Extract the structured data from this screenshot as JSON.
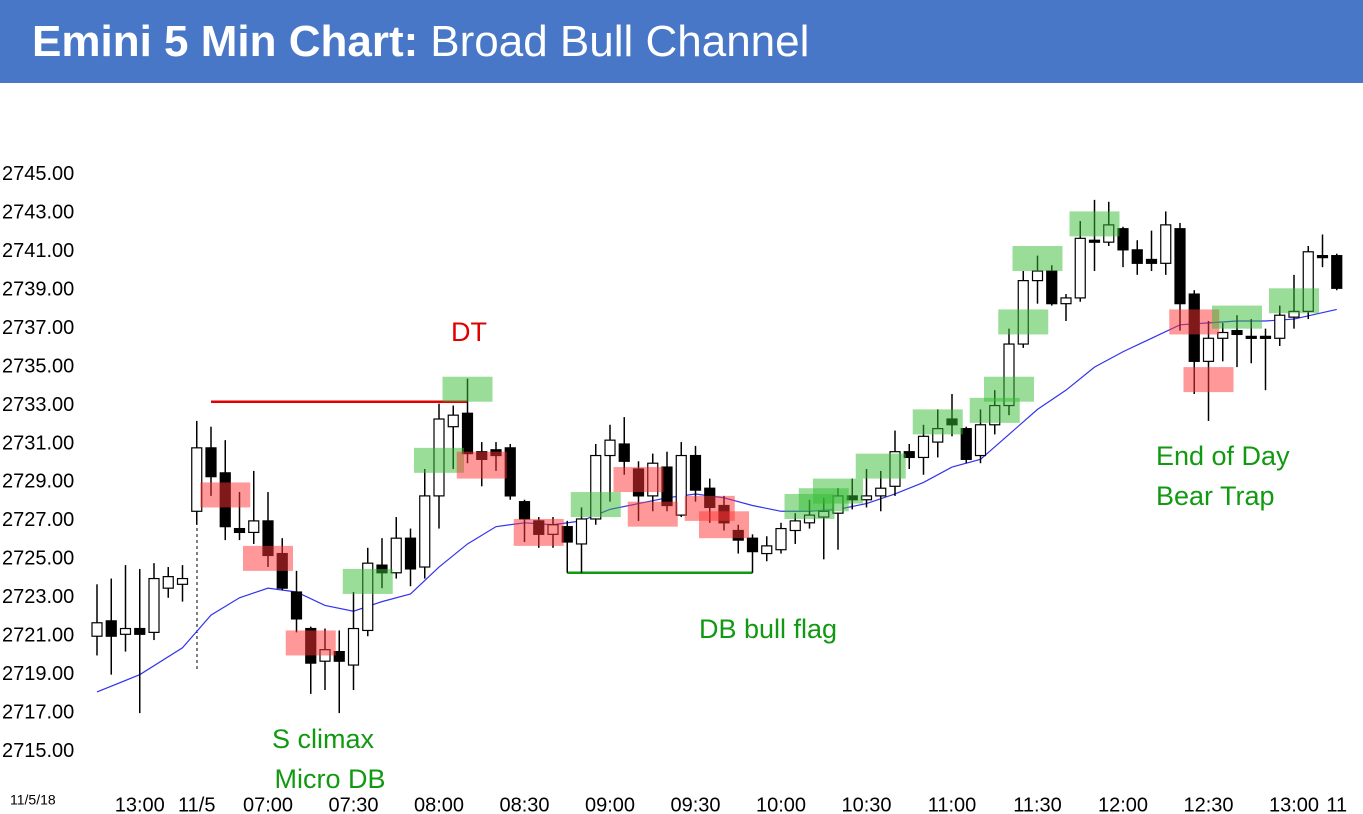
{
  "chart_data": {
    "type": "candlestick",
    "title_bold": "Emini 5 Min Chart:",
    "title_rest": "Broad Bull Channel",
    "date_label": "11/5/18",
    "categories": [
      null,
      null,
      null,
      "13:00",
      null,
      null,
      null,
      "11/5",
      null,
      null,
      null,
      null,
      "07:00",
      null,
      null,
      null,
      null,
      null,
      "07:30",
      null,
      null,
      null,
      null,
      null,
      "08:00",
      null,
      null,
      null,
      null,
      null,
      "08:30",
      null,
      null,
      null,
      null,
      null,
      "09:00",
      null,
      null,
      null,
      null,
      null,
      "09:30",
      null,
      null,
      null,
      null,
      null,
      "10:00",
      null,
      null,
      null,
      null,
      null,
      "10:30",
      null,
      null,
      null,
      null,
      null,
      "11:00",
      null,
      null,
      null,
      null,
      null,
      "11:30",
      null,
      null,
      null,
      null,
      null,
      "12:00",
      null,
      null,
      null,
      null,
      null,
      "12:30",
      null,
      null,
      null,
      null,
      null,
      "13:00",
      null,
      null,
      "11"
    ],
    "open": [
      2721.0,
      2721.8,
      2721.1,
      2721.4,
      2721.2,
      2723.5,
      2723.7,
      2727.5,
      2730.8,
      2729.5,
      2726.6,
      2726.4,
      2727.0,
      2725.3,
      2723.3,
      2721.4,
      2719.7,
      2720.2,
      2719.5,
      2721.3,
      2724.7,
      2724.3,
      2726.1,
      2724.6,
      2728.3,
      2731.9,
      2732.6,
      2730.6,
      2730.7,
      2730.8,
      2728.0,
      2727.0,
      2726.3,
      2726.7,
      2725.8,
      2727.1,
      2730.4,
      2731.0,
      2729.7,
      2728.3,
      2729.8,
      2727.3,
      2730.4,
      2728.7,
      2727.8,
      2726.5,
      2726.1,
      2725.3,
      2725.5,
      2726.5,
      2726.9,
      2727.2,
      2727.4,
      2728.3,
      2728.1,
      2728.3,
      2728.8,
      2730.6,
      2730.3,
      2731.1,
      2732.3,
      2731.8,
      2730.4,
      2732.0,
      2733.0,
      2736.2,
      2739.5,
      2740.0,
      2738.3,
      2738.6,
      2741.6,
      2741.5,
      2742.2,
      2741.1,
      2740.6,
      2740.4,
      2742.2,
      2738.8,
      2735.3,
      2736.5,
      2736.9,
      2736.6,
      2736.6,
      2736.5,
      2737.6,
      2737.9,
      2740.8,
      2740.8
    ],
    "high": [
      2723.7,
      2724.0,
      2724.7,
      2724.5,
      2724.8,
      2724.6,
      2724.7,
      2732.2,
      2731.9,
      2731.2,
      2728.5,
      2729.6,
      2728.5,
      2726.1,
      2724.4,
      2721.5,
      2721.4,
      2721.3,
      2723.3,
      2725.6,
      2726.1,
      2727.2,
      2726.6,
      2729.7,
      2733.1,
      2733.0,
      2734.4,
      2731.1,
      2731.1,
      2731.0,
      2728.1,
      2727.2,
      2727.2,
      2727.0,
      2727.7,
      2731.0,
      2732.0,
      2732.4,
      2730.1,
      2730.5,
      2730.6,
      2731.1,
      2730.9,
      2729.2,
      2728.3,
      2726.8,
      2726.3,
      2726.2,
      2726.9,
      2727.4,
      2728.1,
      2728.2,
      2728.7,
      2729.2,
      2729.7,
      2729.6,
      2731.7,
      2731.0,
      2732.0,
      2732.8,
      2733.6,
      2731.9,
      2732.8,
      2733.8,
      2737.0,
      2740.0,
      2740.8,
      2740.3,
      2738.8,
      2742.6,
      2743.7,
      2743.6,
      2742.3,
      2741.6,
      2742.1,
      2743.1,
      2742.5,
      2739.0,
      2737.4,
      2737.3,
      2737.7,
      2737.5,
      2737.0,
      2738.2,
      2739.8,
      2741.3,
      2741.9,
      2740.9
    ],
    "low": [
      2720.0,
      2719.0,
      2720.2,
      2717.0,
      2720.8,
      2723.0,
      2722.8,
      2726.8,
      2728.3,
      2726.0,
      2726.0,
      2725.8,
      2724.6,
      2723.4,
      2721.2,
      2718.0,
      2718.2,
      2717.0,
      2718.2,
      2721.0,
      2723.5,
      2724.0,
      2723.6,
      2724.0,
      2726.6,
      2729.7,
      2730.0,
      2728.8,
      2729.6,
      2728.1,
      2725.9,
      2725.6,
      2725.6,
      2724.3,
      2724.3,
      2726.8,
      2728.0,
      2729.4,
      2727.0,
      2727.5,
      2727.5,
      2727.2,
      2728.0,
      2726.9,
      2726.5,
      2725.3,
      2724.3,
      2724.9,
      2725.3,
      2725.8,
      2726.6,
      2725.0,
      2725.5,
      2727.6,
      2727.7,
      2727.5,
      2728.3,
      2729.7,
      2729.4,
      2730.3,
      2731.4,
      2730.0,
      2730.0,
      2731.5,
      2732.5,
      2736.0,
      2738.3,
      2738.2,
      2737.4,
      2738.4,
      2740.0,
      2741.3,
      2740.2,
      2739.8,
      2740.0,
      2739.8,
      2736.9,
      2733.6,
      2732.2,
      2735.3,
      2735.0,
      2735.2,
      2733.8,
      2736.1,
      2737.0,
      2737.5,
      2740.2,
      2739.0
    ],
    "close": [
      2721.7,
      2721.0,
      2721.4,
      2721.1,
      2724.0,
      2724.1,
      2724.0,
      2730.8,
      2729.3,
      2726.7,
      2726.4,
      2727.0,
      2725.2,
      2723.5,
      2721.9,
      2719.6,
      2720.3,
      2719.7,
      2721.4,
      2724.8,
      2724.3,
      2726.1,
      2724.5,
      2728.3,
      2732.3,
      2732.5,
      2730.5,
      2730.2,
      2730.4,
      2728.3,
      2727.1,
      2726.3,
      2726.8,
      2725.9,
      2727.1,
      2730.4,
      2731.2,
      2730.1,
      2728.3,
      2730.0,
      2727.8,
      2730.4,
      2728.6,
      2727.7,
      2726.9,
      2726.0,
      2725.4,
      2725.7,
      2726.6,
      2727.0,
      2727.3,
      2727.5,
      2728.3,
      2728.1,
      2728.3,
      2728.7,
      2730.6,
      2730.3,
      2731.4,
      2731.8,
      2732.0,
      2730.2,
      2732.0,
      2733.0,
      2736.2,
      2739.5,
      2740.0,
      2738.3,
      2738.6,
      2741.7,
      2741.5,
      2742.4,
      2741.1,
      2740.4,
      2740.4,
      2742.4,
      2738.3,
      2735.3,
      2736.5,
      2736.8,
      2736.7,
      2736.5,
      2736.5,
      2737.7,
      2737.9,
      2741.0,
      2740.7,
      2739.1
    ],
    "ema": {
      "color": "#3333ee",
      "x": [
        0,
        3,
        6,
        8,
        10,
        12,
        14,
        16,
        18,
        20,
        22,
        24,
        26,
        28,
        30,
        32,
        34,
        36,
        38,
        40,
        42,
        44,
        46,
        48,
        50,
        52,
        54,
        56,
        58,
        60,
        62,
        64,
        66,
        68,
        70,
        72,
        74,
        76,
        78,
        80,
        82,
        84,
        87
      ],
      "values": [
        2718.1,
        2719.0,
        2720.4,
        2722.1,
        2723.0,
        2723.5,
        2723.3,
        2722.6,
        2722.3,
        2722.8,
        2723.2,
        2724.6,
        2725.8,
        2726.7,
        2726.9,
        2726.8,
        2727.0,
        2727.6,
        2727.9,
        2728.2,
        2728.4,
        2728.2,
        2727.8,
        2727.5,
        2727.5,
        2727.6,
        2727.9,
        2728.4,
        2729.0,
        2729.8,
        2730.2,
        2731.5,
        2732.8,
        2733.8,
        2735.0,
        2735.8,
        2736.5,
        2737.2,
        2737.3,
        2737.4,
        2737.4,
        2737.5,
        2738.0
      ]
    },
    "highlights": [
      {
        "color": "#ff3333",
        "bar": 9,
        "range": [
          2727.7,
          2729.0
        ]
      },
      {
        "color": "#ff3333",
        "bar": 12,
        "range": [
          2724.4,
          2725.7
        ]
      },
      {
        "color": "#ff3333",
        "bar": 15,
        "range": [
          2720.0,
          2721.3
        ]
      },
      {
        "color": "#33bb33",
        "bar": 19,
        "range": [
          2723.2,
          2724.5
        ]
      },
      {
        "color": "#33bb33",
        "bar": 24,
        "range": [
          2729.5,
          2730.8
        ]
      },
      {
        "color": "#33bb33",
        "bar": 26,
        "range": [
          2733.2,
          2734.5
        ]
      },
      {
        "color": "#ff3333",
        "bar": 27,
        "range": [
          2729.2,
          2730.6
        ]
      },
      {
        "color": "#ff3333",
        "bar": 31,
        "range": [
          2725.7,
          2727.1
        ]
      },
      {
        "color": "#33bb33",
        "bar": 35,
        "range": [
          2727.2,
          2728.5
        ]
      },
      {
        "color": "#ff3333",
        "bar": 38,
        "range": [
          2728.5,
          2729.8
        ]
      },
      {
        "color": "#ff3333",
        "bar": 39,
        "range": [
          2726.7,
          2728.0
        ]
      },
      {
        "color": "#ff3333",
        "bar": 43,
        "range": [
          2727.0,
          2728.3
        ]
      },
      {
        "color": "#ff3333",
        "bar": 44,
        "range": [
          2726.1,
          2727.5
        ]
      },
      {
        "color": "#33bb33",
        "bar": 50,
        "range": [
          2727.1,
          2728.4
        ]
      },
      {
        "color": "#33bb33",
        "bar": 51,
        "range": [
          2727.5,
          2728.7
        ]
      },
      {
        "color": "#33bb33",
        "bar": 52,
        "range": [
          2727.9,
          2729.2
        ]
      },
      {
        "color": "#33bb33",
        "bar": 55,
        "range": [
          2729.2,
          2730.5
        ]
      },
      {
        "color": "#33bb33",
        "bar": 59,
        "range": [
          2731.5,
          2732.8
        ]
      },
      {
        "color": "#33bb33",
        "bar": 63,
        "range": [
          2732.1,
          2733.4
        ]
      },
      {
        "color": "#33bb33",
        "bar": 64,
        "range": [
          2733.2,
          2734.5
        ]
      },
      {
        "color": "#33bb33",
        "bar": 65,
        "range": [
          2736.7,
          2738.0
        ]
      },
      {
        "color": "#33bb33",
        "bar": 66,
        "range": [
          2740.0,
          2741.3
        ]
      },
      {
        "color": "#33bb33",
        "bar": 70,
        "range": [
          2741.8,
          2743.1
        ]
      },
      {
        "color": "#ff3333",
        "bar": 77,
        "range": [
          2736.7,
          2738.0
        ]
      },
      {
        "color": "#ff3333",
        "bar": 78,
        "range": [
          2733.7,
          2735.0
        ]
      },
      {
        "color": "#33bb33",
        "bar": 80,
        "range": [
          2737.0,
          2738.2
        ]
      },
      {
        "color": "#33bb33",
        "bar": 84,
        "range": [
          2737.8,
          2739.1
        ]
      }
    ],
    "levels": [
      {
        "color": "#e00000",
        "from": 8,
        "to": 26,
        "value": 2733.2
      },
      {
        "color": "#119911",
        "from": 33,
        "to": 46,
        "value": 2724.3
      }
    ],
    "annotations": {
      "dt": "DT",
      "db": "DB bull flag",
      "climax": "S climax",
      "micro": "Micro DB",
      "eod": "End of Day",
      "trap": "Bear Trap"
    },
    "ylim": [
      2713,
      2749
    ],
    "yticks": [
      {
        "value": 2745,
        "label": "2745.00"
      },
      {
        "value": 2743,
        "label": "2743.00"
      },
      {
        "value": 2741,
        "label": "2741.00"
      },
      {
        "value": 2739,
        "label": "2739.00"
      },
      {
        "value": 2737,
        "label": "2737.00"
      },
      {
        "value": 2735,
        "label": "2735.00"
      },
      {
        "value": 2733,
        "label": "2733.00"
      },
      {
        "value": 2731,
        "label": "2731.00"
      },
      {
        "value": 2729,
        "label": "2729.00"
      },
      {
        "value": 2727,
        "label": "2727.00"
      },
      {
        "value": 2725,
        "label": "2725.00"
      },
      {
        "value": 2723,
        "label": "2723.00"
      },
      {
        "value": 2721,
        "label": "2721.00"
      },
      {
        "value": 2719,
        "label": "2719.00"
      },
      {
        "value": 2717,
        "label": "2717.00"
      },
      {
        "value": 2715,
        "label": "2715.00"
      }
    ]
  }
}
